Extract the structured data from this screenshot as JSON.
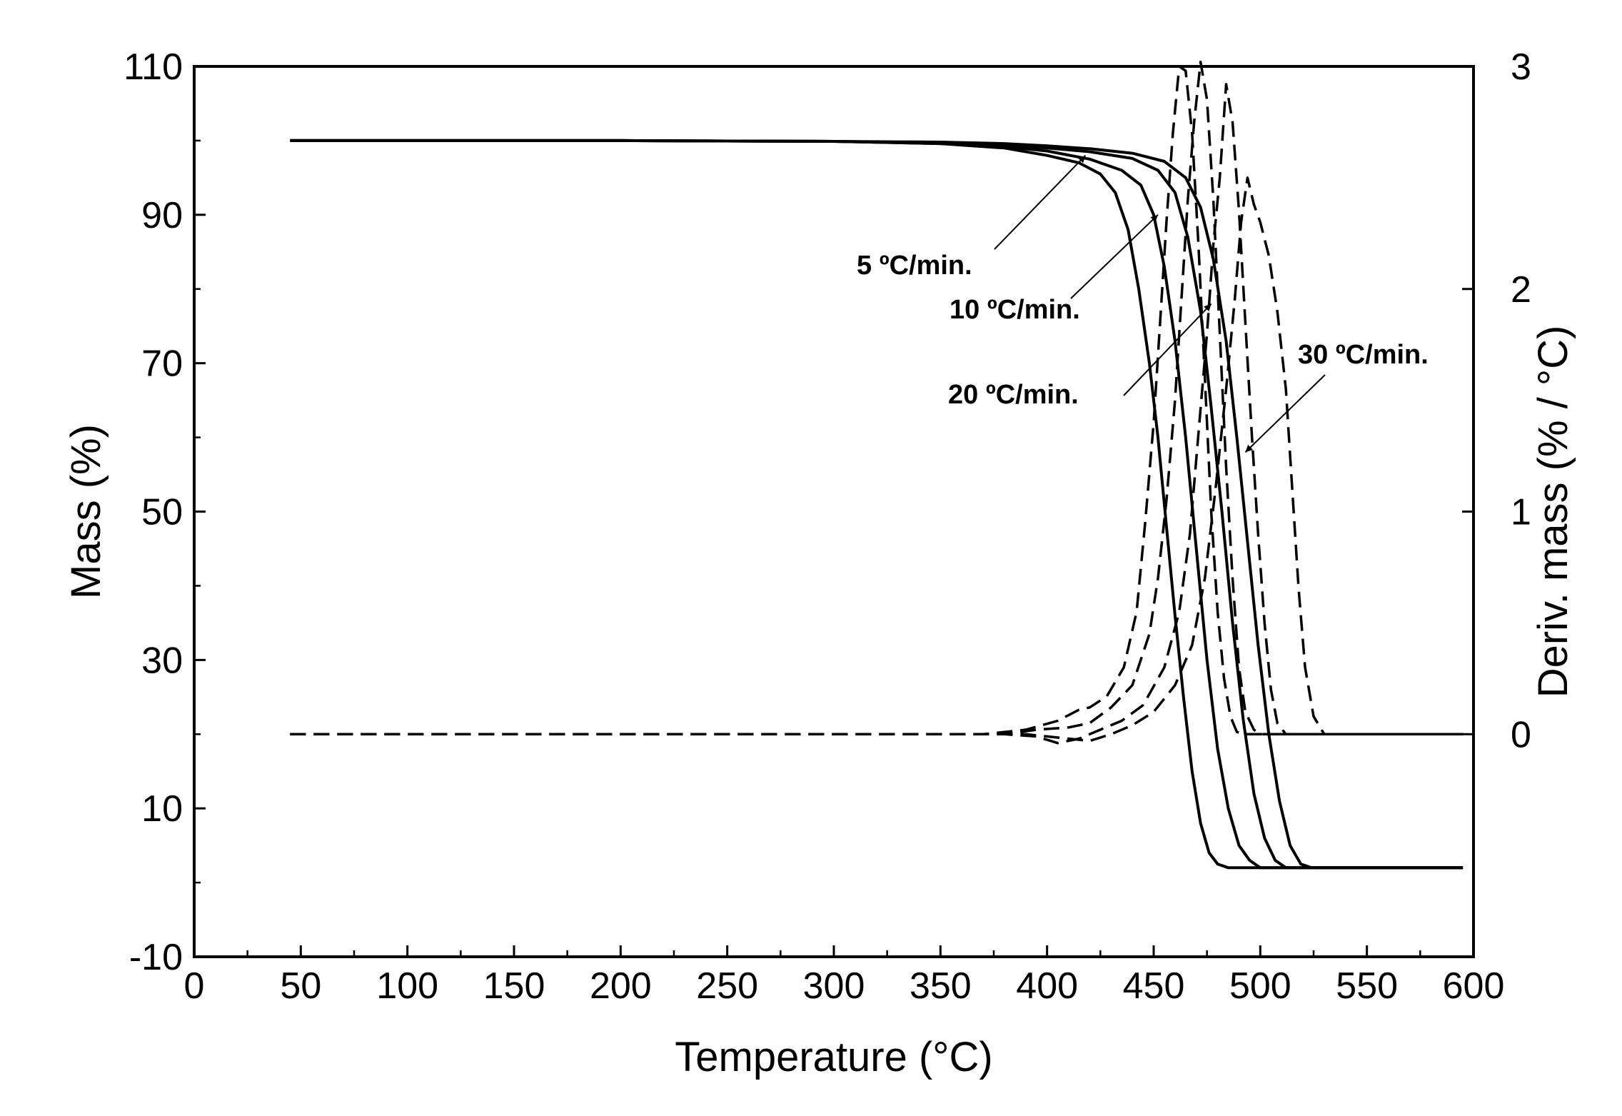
{
  "chart_data": {
    "type": "line",
    "title": "",
    "xlabel": "Temperature (°C)",
    "ylabel": "Mass (%)",
    "y2label": "Deriv. mass (% / °C)",
    "xlim": [
      0,
      600
    ],
    "ylim": [
      -10,
      110
    ],
    "y2lim": [
      -1,
      3
    ],
    "grid": false,
    "x_ticks": [
      0,
      50,
      100,
      150,
      200,
      250,
      300,
      350,
      400,
      450,
      500,
      550,
      600
    ],
    "y_ticks": [
      -10,
      10,
      30,
      50,
      70,
      90,
      110
    ],
    "y2_ticks": [
      0,
      1,
      2,
      3
    ],
    "mass_series": [
      {
        "name": "5 °C/min.",
        "points": [
          [
            45,
            100
          ],
          [
            200,
            100
          ],
          [
            300,
            99.9
          ],
          [
            350,
            99.6
          ],
          [
            380,
            99
          ],
          [
            400,
            98
          ],
          [
            415,
            97
          ],
          [
            425,
            95.5
          ],
          [
            432,
            93
          ],
          [
            438,
            88
          ],
          [
            443,
            80
          ],
          [
            448,
            70
          ],
          [
            452,
            60
          ],
          [
            456,
            48
          ],
          [
            460,
            36
          ],
          [
            464,
            25
          ],
          [
            468,
            15
          ],
          [
            472,
            8
          ],
          [
            476,
            4
          ],
          [
            480,
            2.5
          ],
          [
            485,
            2
          ],
          [
            595,
            2
          ]
        ]
      },
      {
        "name": "10 °C/min.",
        "points": [
          [
            45,
            100
          ],
          [
            200,
            100
          ],
          [
            300,
            99.9
          ],
          [
            350,
            99.6
          ],
          [
            380,
            99.2
          ],
          [
            400,
            98.6
          ],
          [
            420,
            97.5
          ],
          [
            435,
            96
          ],
          [
            444,
            94
          ],
          [
            450,
            90
          ],
          [
            455,
            83
          ],
          [
            460,
            73
          ],
          [
            465,
            60
          ],
          [
            470,
            45
          ],
          [
            475,
            30
          ],
          [
            480,
            18
          ],
          [
            485,
            10
          ],
          [
            490,
            5
          ],
          [
            495,
            3
          ],
          [
            500,
            2
          ],
          [
            595,
            2
          ]
        ]
      },
      {
        "name": "20 °C/min.",
        "points": [
          [
            45,
            100
          ],
          [
            200,
            100
          ],
          [
            300,
            99.9
          ],
          [
            350,
            99.7
          ],
          [
            380,
            99.4
          ],
          [
            400,
            99
          ],
          [
            420,
            98.5
          ],
          [
            440,
            97.6
          ],
          [
            452,
            96
          ],
          [
            460,
            93
          ],
          [
            466,
            87
          ],
          [
            472,
            77
          ],
          [
            477,
            64
          ],
          [
            482,
            50
          ],
          [
            487,
            35
          ],
          [
            492,
            22
          ],
          [
            497,
            12
          ],
          [
            502,
            6
          ],
          [
            507,
            3
          ],
          [
            512,
            2
          ],
          [
            595,
            2
          ]
        ]
      },
      {
        "name": "30 °C/min.",
        "points": [
          [
            45,
            100
          ],
          [
            200,
            100
          ],
          [
            300,
            99.9
          ],
          [
            350,
            99.8
          ],
          [
            380,
            99.6
          ],
          [
            400,
            99.3
          ],
          [
            420,
            98.9
          ],
          [
            440,
            98.3
          ],
          [
            455,
            97.2
          ],
          [
            465,
            95
          ],
          [
            472,
            91
          ],
          [
            478,
            84
          ],
          [
            484,
            73
          ],
          [
            489,
            60
          ],
          [
            494,
            46
          ],
          [
            499,
            32
          ],
          [
            504,
            20
          ],
          [
            509,
            11
          ],
          [
            514,
            5
          ],
          [
            519,
            2.5
          ],
          [
            524,
            2
          ],
          [
            595,
            2
          ]
        ]
      }
    ],
    "deriv_series": [
      {
        "name": "5 °C/min.",
        "points": [
          [
            45,
            0
          ],
          [
            370,
            0
          ],
          [
            390,
            0.02
          ],
          [
            405,
            0.06
          ],
          [
            415,
            0.11
          ],
          [
            420,
            0.12
          ],
          [
            428,
            0.17
          ],
          [
            436,
            0.3
          ],
          [
            442,
            0.55
          ],
          [
            446,
            0.95
          ],
          [
            450,
            1.4
          ],
          [
            453,
            1.85
          ],
          [
            456,
            2.3
          ],
          [
            459,
            2.7
          ],
          [
            462,
            3.0
          ],
          [
            465,
            2.98
          ],
          [
            468,
            2.7
          ],
          [
            471,
            2.2
          ],
          [
            474,
            1.6
          ],
          [
            477,
            1.0
          ],
          [
            480,
            0.55
          ],
          [
            483,
            0.25
          ],
          [
            486,
            0.08
          ],
          [
            489,
            0.01
          ],
          [
            492,
            0
          ],
          [
            595,
            0
          ]
        ]
      },
      {
        "name": "10 °C/min.",
        "points": [
          [
            45,
            0
          ],
          [
            380,
            0
          ],
          [
            395,
            0.02
          ],
          [
            410,
            0.03
          ],
          [
            420,
            0.05
          ],
          [
            430,
            0.12
          ],
          [
            440,
            0.22
          ],
          [
            448,
            0.45
          ],
          [
            452,
            0.7
          ],
          [
            456,
            1.05
          ],
          [
            460,
            1.5
          ],
          [
            463,
            1.95
          ],
          [
            466,
            2.4
          ],
          [
            469,
            2.75
          ],
          [
            472,
            3.02
          ],
          [
            475,
            2.85
          ],
          [
            478,
            2.4
          ],
          [
            481,
            1.8
          ],
          [
            484,
            1.2
          ],
          [
            487,
            0.7
          ],
          [
            490,
            0.3
          ],
          [
            493,
            0.1
          ],
          [
            497,
            0.02
          ],
          [
            500,
            0
          ],
          [
            595,
            0
          ]
        ]
      },
      {
        "name": "20 °C/min.",
        "points": [
          [
            45,
            0
          ],
          [
            380,
            0
          ],
          [
            395,
            -0.01
          ],
          [
            405,
            -0.04
          ],
          [
            415,
            -0.02
          ],
          [
            425,
            0.02
          ],
          [
            435,
            0.06
          ],
          [
            445,
            0.13
          ],
          [
            455,
            0.3
          ],
          [
            462,
            0.55
          ],
          [
            467,
            0.9
          ],
          [
            471,
            1.35
          ],
          [
            475,
            1.8
          ],
          [
            478,
            2.2
          ],
          [
            481,
            2.5
          ],
          [
            484,
            2.92
          ],
          [
            487,
            2.75
          ],
          [
            490,
            2.35
          ],
          [
            493,
            1.85
          ],
          [
            496,
            1.35
          ],
          [
            499,
            0.9
          ],
          [
            502,
            0.5
          ],
          [
            505,
            0.2
          ],
          [
            508,
            0.05
          ],
          [
            512,
            0
          ],
          [
            595,
            0
          ]
        ]
      },
      {
        "name": "30 °C/min.",
        "points": [
          [
            45,
            0
          ],
          [
            390,
            0
          ],
          [
            400,
            -0.01
          ],
          [
            410,
            -0.02
          ],
          [
            420,
            -0.03
          ],
          [
            430,
            0
          ],
          [
            440,
            0.04
          ],
          [
            450,
            0.1
          ],
          [
            460,
            0.22
          ],
          [
            468,
            0.4
          ],
          [
            474,
            0.7
          ],
          [
            479,
            1.1
          ],
          [
            484,
            1.55
          ],
          [
            488,
            1.95
          ],
          [
            491,
            2.3
          ],
          [
            494,
            2.5
          ],
          [
            497,
            2.38
          ],
          [
            500,
            2.3
          ],
          [
            504,
            2.15
          ],
          [
            508,
            1.9
          ],
          [
            512,
            1.55
          ],
          [
            515,
            1.1
          ],
          [
            518,
            0.65
          ],
          [
            521,
            0.3
          ],
          [
            525,
            0.08
          ],
          [
            530,
            0
          ],
          [
            595,
            0
          ]
        ]
      }
    ],
    "annotations": [
      {
        "text": "5 ºC/min.",
        "target": [
          418,
          98
        ]
      },
      {
        "text": "10 ºC/min.",
        "target": [
          452,
          90
        ]
      },
      {
        "text": "20 ºC/min.",
        "target": [
          477,
          78
        ]
      },
      {
        "text": "30 ºC/min.",
        "target": [
          493,
          58
        ]
      }
    ]
  }
}
